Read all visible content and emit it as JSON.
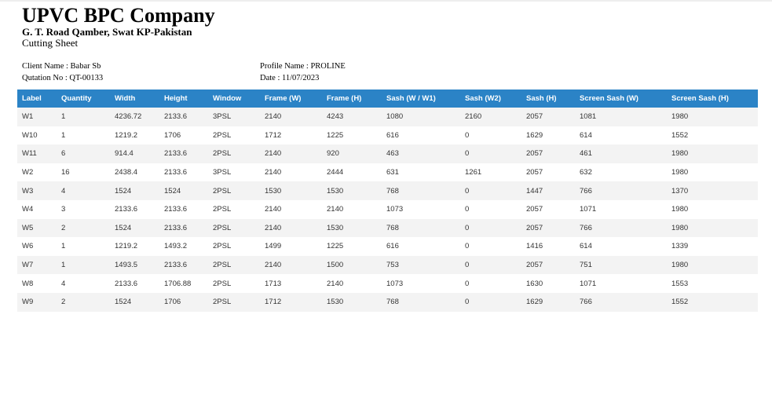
{
  "header": {
    "company": "UPVC BPC Company",
    "address": "G. T. Road Qamber, Swat KP-Pakistan",
    "sheet_title": "Cutting Sheet"
  },
  "meta": {
    "client_name": "Client Name : Babar Sb",
    "quotation_no": "Qutation No : QT-00133",
    "profile_name": "Profile Name : PROLINE",
    "date": "Date : 11/07/2023"
  },
  "table": {
    "columns": [
      "Label",
      "Quantity",
      "Width",
      "Height",
      "Window",
      "Frame (W)",
      "Frame (H)",
      "Sash (W / W1)",
      "Sash (W2)",
      "Sash (H)",
      "Screen Sash (W)",
      "Screen Sash (H)"
    ],
    "rows": [
      [
        "W1",
        "1",
        "4236.72",
        "2133.6",
        "3PSL",
        "2140",
        "4243",
        "1080",
        "2160",
        "2057",
        "1081",
        "1980"
      ],
      [
        "W10",
        "1",
        "1219.2",
        "1706",
        "2PSL",
        "1712",
        "1225",
        "616",
        "0",
        "1629",
        "614",
        "1552"
      ],
      [
        "W11",
        "6",
        "914.4",
        "2133.6",
        "2PSL",
        "2140",
        "920",
        "463",
        "0",
        "2057",
        "461",
        "1980"
      ],
      [
        "W2",
        "16",
        "2438.4",
        "2133.6",
        "3PSL",
        "2140",
        "2444",
        "631",
        "1261",
        "2057",
        "632",
        "1980"
      ],
      [
        "W3",
        "4",
        "1524",
        "1524",
        "2PSL",
        "1530",
        "1530",
        "768",
        "0",
        "1447",
        "766",
        "1370"
      ],
      [
        "W4",
        "3",
        "2133.6",
        "2133.6",
        "2PSL",
        "2140",
        "2140",
        "1073",
        "0",
        "2057",
        "1071",
        "1980"
      ],
      [
        "W5",
        "2",
        "1524",
        "2133.6",
        "2PSL",
        "2140",
        "1530",
        "768",
        "0",
        "2057",
        "766",
        "1980"
      ],
      [
        "W6",
        "1",
        "1219.2",
        "1493.2",
        "2PSL",
        "1499",
        "1225",
        "616",
        "0",
        "1416",
        "614",
        "1339"
      ],
      [
        "W7",
        "1",
        "1493.5",
        "2133.6",
        "2PSL",
        "2140",
        "1500",
        "753",
        "0",
        "2057",
        "751",
        "1980"
      ],
      [
        "W8",
        "4",
        "2133.6",
        "1706.88",
        "2PSL",
        "1713",
        "2140",
        "1073",
        "0",
        "1630",
        "1071",
        "1553"
      ],
      [
        "W9",
        "2",
        "1524",
        "1706",
        "2PSL",
        "1712",
        "1530",
        "768",
        "0",
        "1629",
        "766",
        "1552"
      ]
    ]
  },
  "colors": {
    "header_bg": "#2b83c6",
    "row_alt": "#f3f3f3"
  }
}
